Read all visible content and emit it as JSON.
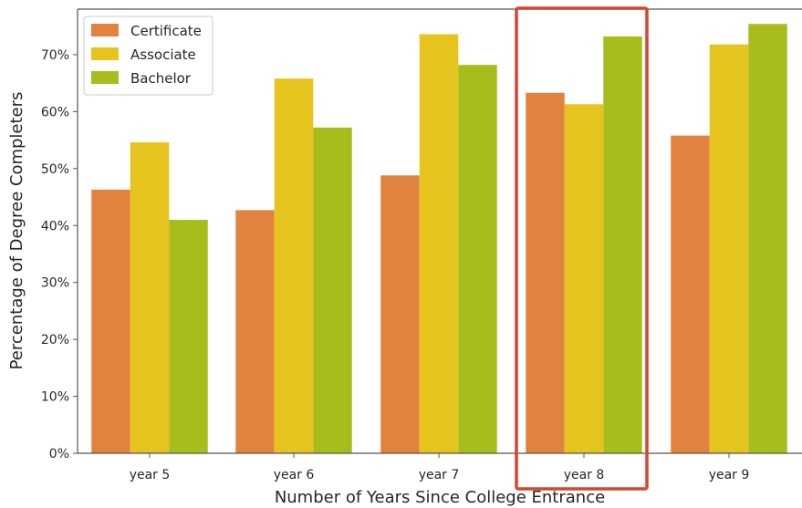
{
  "chart_data": {
    "type": "bar",
    "categories": [
      "year 5",
      "year 6",
      "year 7",
      "year 8",
      "year 9"
    ],
    "series": [
      {
        "name": "Certificate",
        "color": "#e2823f",
        "values": [
          46.3,
          42.7,
          48.8,
          63.3,
          55.8
        ]
      },
      {
        "name": "Associate",
        "color": "#e6c41e",
        "values": [
          54.6,
          65.8,
          73.6,
          61.3,
          71.8
        ]
      },
      {
        "name": "Bachelor",
        "color": "#a8bd1c",
        "values": [
          41.0,
          57.2,
          68.2,
          73.2,
          75.4
        ]
      }
    ],
    "xlabel": "Number of Years Since College Entrance",
    "ylabel": "Percentage of Degree Completers",
    "ylim": [
      0,
      78
    ],
    "yticks": [
      0,
      10,
      20,
      30,
      40,
      50,
      60,
      70
    ],
    "ytick_labels": [
      "0%",
      "10%",
      "20%",
      "30%",
      "40%",
      "50%",
      "60%",
      "70%"
    ],
    "legend_position": "top-left",
    "grid": false,
    "highlight": {
      "category": "year 8",
      "color": "#d9432f"
    }
  }
}
